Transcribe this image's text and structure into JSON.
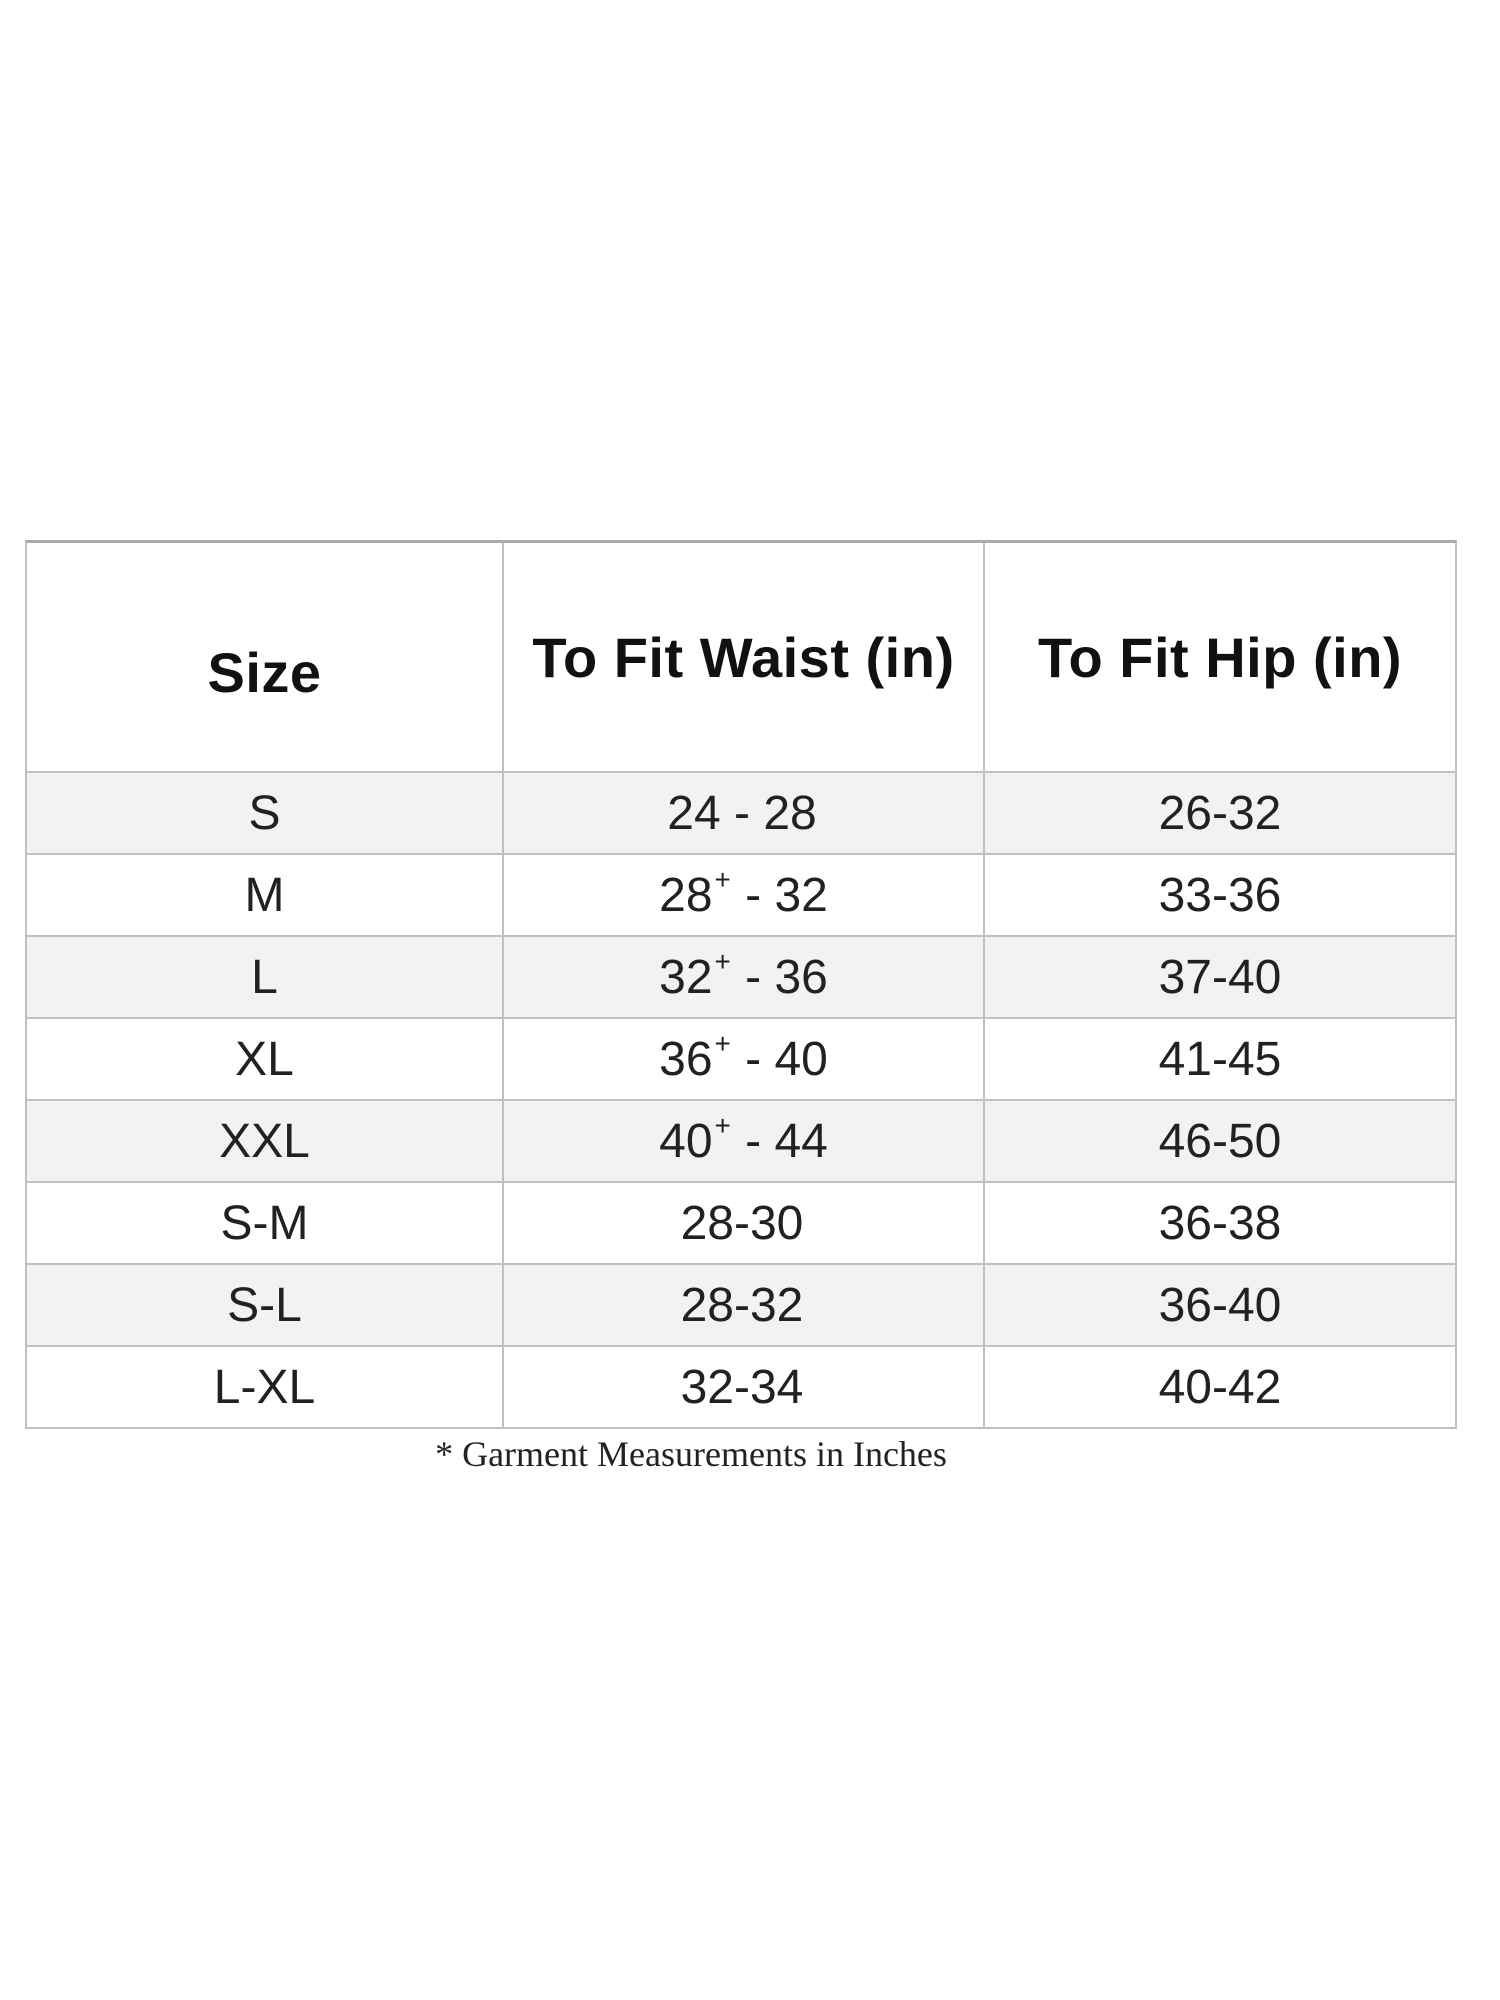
{
  "table": {
    "columns": [
      {
        "key": "size",
        "label": "Size"
      },
      {
        "key": "waist",
        "label": "To Fit Waist (in)"
      },
      {
        "key": "hip",
        "label": "To Fit Hip (in)"
      }
    ],
    "rows": [
      {
        "size": "S",
        "waist_pre": "24 - 28",
        "waist_sup": "",
        "waist_post": "",
        "hip": "26-32",
        "shaded": true
      },
      {
        "size": "M",
        "waist_pre": "28",
        "waist_sup": "+",
        "waist_post": " - 32",
        "hip": "33-36",
        "shaded": false
      },
      {
        "size": "L",
        "waist_pre": "32",
        "waist_sup": "+",
        "waist_post": " - 36",
        "hip": "37-40",
        "shaded": true
      },
      {
        "size": "XL",
        "waist_pre": "36",
        "waist_sup": "+",
        "waist_post": " - 40",
        "hip": "41-45",
        "shaded": false
      },
      {
        "size": "XXL",
        "waist_pre": "40",
        "waist_sup": "+",
        "waist_post": " - 44",
        "hip": "46-50",
        "shaded": true
      },
      {
        "size": "S-M",
        "waist_pre": "28-30",
        "waist_sup": "",
        "waist_post": "",
        "hip": "36-38",
        "shaded": false
      },
      {
        "size": "S-L",
        "waist_pre": "28-32",
        "waist_sup": "",
        "waist_post": "",
        "hip": "36-40",
        "shaded": true
      },
      {
        "size": "L-XL",
        "waist_pre": "32-34",
        "waist_sup": "",
        "waist_post": "",
        "hip": "40-42",
        "shaded": false
      }
    ],
    "footnote": "* Garment Measurements in Inches"
  },
  "colors": {
    "page_bg": "#ffffff",
    "row_shade": "#f2f2f2",
    "border": "#c0c0c0",
    "border_top": "#ababab",
    "text": "#212121",
    "header_text": "#111111"
  },
  "chart_data": {
    "type": "table",
    "title": "",
    "columns": [
      "Size",
      "To Fit Waist (in)",
      "To Fit Hip (in)"
    ],
    "rows": [
      [
        "S",
        "24 - 28",
        "26-32"
      ],
      [
        "M",
        "28+ - 32",
        "33-36"
      ],
      [
        "L",
        "32+ - 36",
        "37-40"
      ],
      [
        "XL",
        "36+ - 40",
        "41-45"
      ],
      [
        "XXL",
        "40+ - 44",
        "46-50"
      ],
      [
        "S-M",
        "28-30",
        "36-38"
      ],
      [
        "S-L",
        "28-32",
        "36-40"
      ],
      [
        "L-XL",
        "32-34",
        "40-42"
      ]
    ],
    "footnote": "* Garment Measurements in Inches",
    "layout_hints": {
      "shaded_row_indices": [
        0,
        2,
        4,
        6
      ],
      "header_bold": true,
      "units": "inches"
    }
  }
}
